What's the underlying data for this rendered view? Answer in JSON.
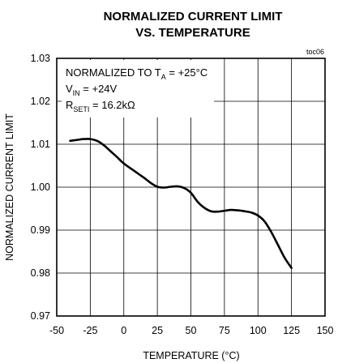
{
  "chart_data": {
    "type": "line",
    "title": "NORMALIZED CURRENT LIMIT",
    "subtitle": "VS. TEMPERATURE",
    "figure_code": "toc06",
    "xlabel": "TEMPERATURE (°C)",
    "ylabel": "NORMALIZED CURRENT LIMIT",
    "xlim": [
      -50,
      150
    ],
    "ylim": [
      0.97,
      1.03
    ],
    "x_ticks": [
      "-50",
      "-25",
      "0",
      "25",
      "50",
      "75",
      "100",
      "125",
      "150"
    ],
    "y_ticks": [
      "0.97",
      "0.98",
      "0.99",
      "1.00",
      "1.01",
      "1.02",
      "1.03"
    ],
    "grid": true,
    "annotations": [
      {
        "main": "NORMALIZED TO T",
        "sub": "A",
        "tail": " = +25°C"
      },
      {
        "main": "V",
        "sub": "IN",
        "tail": " = +24V"
      },
      {
        "main": "R",
        "sub": "SETI",
        "tail": " = 16.2kΩ"
      }
    ],
    "series": [
      {
        "x": [
          -40,
          -35,
          -30,
          -25,
          -20,
          -15,
          -10,
          -5,
          0,
          5,
          10,
          15,
          20,
          25,
          30,
          35,
          40,
          45,
          50,
          55,
          60,
          65,
          70,
          75,
          80,
          85,
          90,
          95,
          100,
          105,
          110,
          115,
          120,
          125
        ],
        "values": [
          1.0108,
          1.011,
          1.0112,
          1.0112,
          1.0108,
          1.0098,
          1.0084,
          1.007,
          1.0055,
          1.0044,
          1.0033,
          1.0022,
          1.001,
          1.0001,
          0.9999,
          1.0001,
          1.0002,
          0.9998,
          0.9987,
          0.9966,
          0.9952,
          0.9944,
          0.9943,
          0.9945,
          0.9947,
          0.9946,
          0.9944,
          0.9941,
          0.9934,
          0.992,
          0.9895,
          0.9865,
          0.9835,
          0.9812
        ]
      }
    ]
  }
}
